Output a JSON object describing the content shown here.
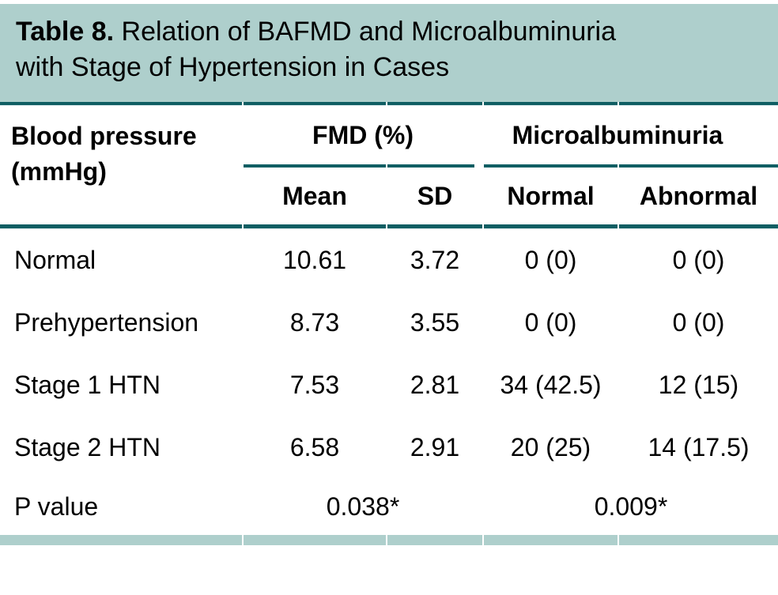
{
  "colors": {
    "header_bg": "#aecfcc",
    "rule": "#0f5e63",
    "footer_bg": "#aecfcc",
    "text": "#000000",
    "page_bg": "#ffffff"
  },
  "title": {
    "prefix": "Table 8.",
    "line1_rest": " Relation of BAFMD and Microalbuminuria",
    "line2": "with Stage of Hypertension in Cases"
  },
  "table": {
    "row_header": "Blood pressure (mmHg)",
    "groups": [
      {
        "label": "FMD (%)",
        "subcols": [
          "Mean",
          "SD"
        ]
      },
      {
        "label": "Microalbuminuria",
        "subcols": [
          "Normal",
          "Abnormal"
        ]
      }
    ],
    "subheaders": {
      "mean": "Mean",
      "sd": "SD",
      "normal": "Normal",
      "abnormal": "Abnormal"
    },
    "rows": [
      {
        "label": "Normal",
        "mean": "10.61",
        "sd": "3.72",
        "normal": "0 (0)",
        "abnormal": "0 (0)"
      },
      {
        "label": "Prehypertension",
        "mean": "8.73",
        "sd": "3.55",
        "normal": "0 (0)",
        "abnormal": "0 (0)"
      },
      {
        "label": "Stage 1 HTN",
        "mean": "7.53",
        "sd": "2.81",
        "normal": "34 (42.5)",
        "abnormal": "12 (15)"
      },
      {
        "label": "Stage 2 HTN",
        "mean": "6.58",
        "sd": "2.91",
        "normal": "20 (25)",
        "abnormal": "14 (17.5)"
      }
    ],
    "p_row": {
      "label": "P value",
      "fmd": "0.038*",
      "micro": "0.009*"
    }
  }
}
